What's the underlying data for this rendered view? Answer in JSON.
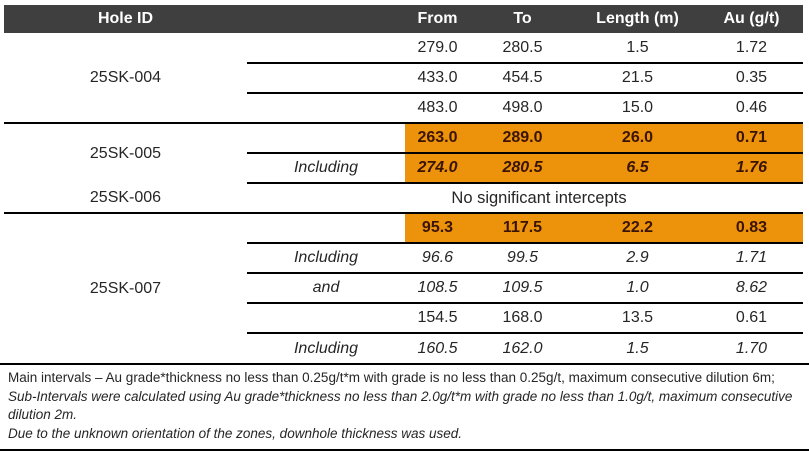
{
  "colors": {
    "header_bg": "#3F3F3F",
    "highlight_bg": "#ED920B",
    "highlight_text": "#3A1403",
    "line": "#000000",
    "text": "#262626"
  },
  "table": {
    "headers": {
      "hole": "Hole ID",
      "sub": "",
      "from": "From",
      "to": "To",
      "length": "Length (m)",
      "au": "Au (g/t)"
    },
    "rows": [
      {
        "hole": "25SK-004",
        "rowspan": 3,
        "hole_border": true,
        "sub": "",
        "from": "279.0",
        "to": "280.5",
        "len": "1.5",
        "au": "1.72",
        "style": "normal",
        "divider": "partial"
      },
      {
        "sub": "",
        "from": "433.0",
        "to": "454.5",
        "len": "21.5",
        "au": "0.35",
        "style": "normal",
        "divider": "partial"
      },
      {
        "sub": "",
        "from": "483.0",
        "to": "498.0",
        "len": "15.0",
        "au": "0.46",
        "style": "normal",
        "divider": "full"
      },
      {
        "hole": "25SK-005",
        "rowspan": 2,
        "hole_border": false,
        "sub": "",
        "from": "263.0",
        "to": "289.0",
        "len": "26.0",
        "au": "0.71",
        "style": "highlight",
        "divider": "partial"
      },
      {
        "sub": "Including",
        "from": "274.0",
        "to": "280.5",
        "len": "6.5",
        "au": "1.76",
        "style": "highlight-italic",
        "divider": "partial"
      },
      {
        "hole": "25SK-006",
        "rowspan": 1,
        "hole_border": true,
        "merged": "No significant intercepts",
        "divider": "full"
      },
      {
        "hole": "25SK-007",
        "rowspan": 5,
        "hole_border": false,
        "sub": "",
        "from": "95.3",
        "to": "117.5",
        "len": "22.2",
        "au": "0.83",
        "style": "highlight",
        "divider": "partial"
      },
      {
        "sub": "Including",
        "from": "96.6",
        "to": "99.5",
        "len": "2.9",
        "au": "1.71",
        "style": "italic",
        "divider": "partial"
      },
      {
        "sub": "and",
        "from": "108.5",
        "to": "109.5",
        "len": "1.0",
        "au": "8.62",
        "style": "italic",
        "divider": "partial"
      },
      {
        "sub": "",
        "from": "154.5",
        "to": "168.0",
        "len": "13.5",
        "au": "0.61",
        "style": "normal",
        "divider": "partial"
      },
      {
        "sub": "Including",
        "from": "160.5",
        "to": "162.0",
        "len": "1.5",
        "au": "1.70",
        "style": "italic",
        "divider": "none"
      }
    ]
  },
  "footnotes": {
    "main_roman": "Main intervals – Au grade*thickness no less than 0.25g/t*m with grade is no less than 0.25g/t, maximum consecutive dilution 6m; ",
    "main_italic": "Sub-Intervals were calculated using Au grade*thickness no less than 2.0g/t*m with grade no less than 1.0g/t, maximum consecutive dilution 2m.",
    "orientation_note": "Due to the unknown orientation of the zones, downhole thickness was used."
  }
}
